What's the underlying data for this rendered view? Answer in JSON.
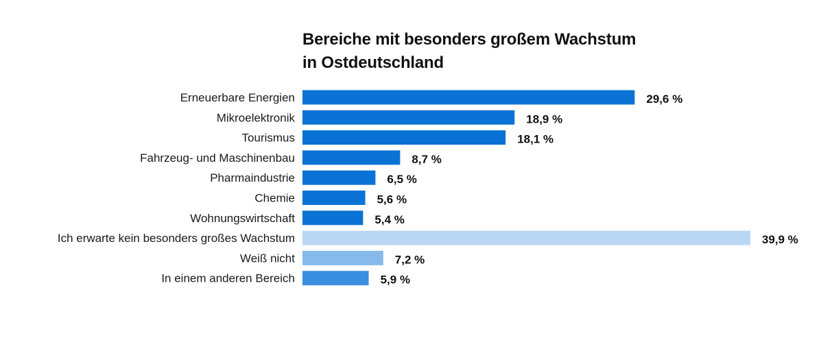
{
  "chart_data": {
    "type": "bar",
    "orientation": "horizontal",
    "title_lines": [
      "Bereiche mit besonders großem Wachstum",
      "in Ostdeutschland"
    ],
    "categories": [
      "Erneuerbare Energien",
      "Mikroelektronik",
      "Tourismus",
      "Fahrzeug- und Maschinenbau",
      "Pharmaindustrie",
      "Chemie",
      "Wohnungswirtschaft",
      "Ich erwarte kein besonders großes Wachstum",
      "Weiß nicht",
      "In einem anderen Bereich"
    ],
    "values": [
      29.6,
      18.9,
      18.1,
      8.7,
      6.5,
      5.6,
      5.4,
      39.9,
      7.2,
      5.9
    ],
    "value_labels": [
      "29,6 %",
      "18,9 %",
      "18,1 %",
      "8,7 %",
      "6,5 %",
      "5,6 %",
      "5,4 %",
      "39,9 %",
      "7,2 %",
      "5,9 %"
    ],
    "bar_colors": [
      "#0A72D4",
      "#0A72D4",
      "#0A72D4",
      "#0A72D4",
      "#0A72D4",
      "#0A72D4",
      "#0A72D4",
      "#B9D6F3",
      "#86BAEC",
      "#3A8FE0"
    ],
    "xlim": [
      0,
      39.9
    ],
    "grid": false,
    "legend": "none"
  }
}
